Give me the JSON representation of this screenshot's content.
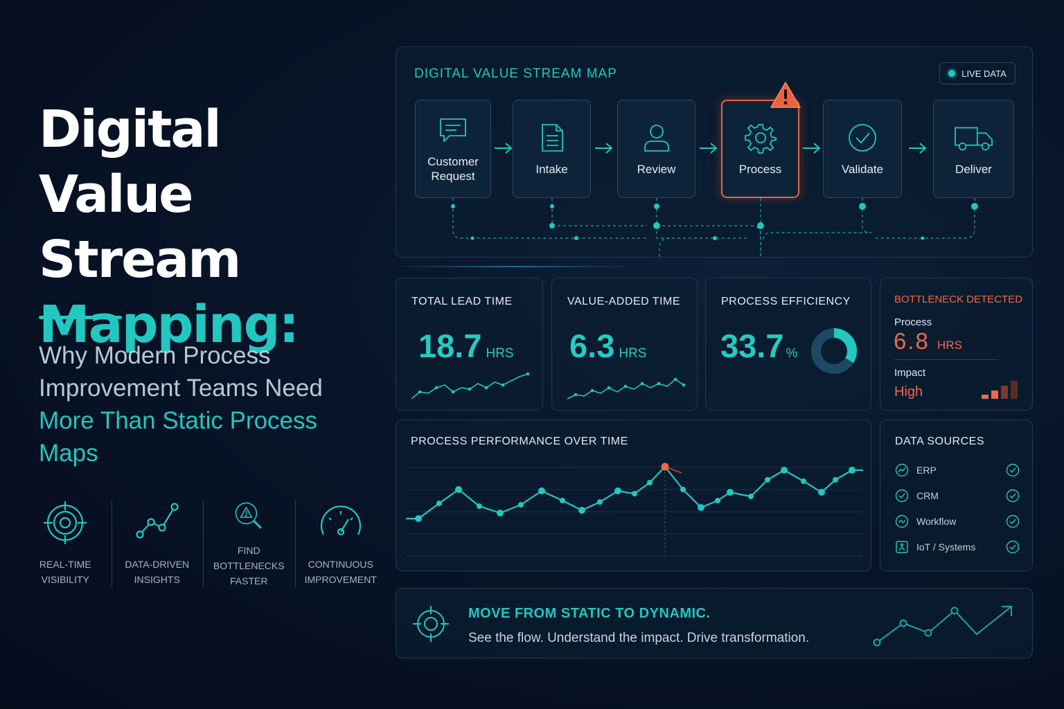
{
  "hero": {
    "title_line1": "Digital",
    "title_line2": "Value Stream",
    "title_line3": "Mapping:",
    "subtitle_part1": "Why Modern Process Improvement Teams Need ",
    "subtitle_part2": "More Than Static Process Maps"
  },
  "features": [
    {
      "icon": "target-icon",
      "label": "REAL-TIME\nVISIBILITY"
    },
    {
      "icon": "trend-line-icon",
      "label": "DATA-DRIVEN\nINSIGHTS"
    },
    {
      "icon": "magnifier-alert-icon",
      "label": "FIND BOTTLENECKS\nFASTER"
    },
    {
      "icon": "speedometer-icon",
      "label": "CONTINUOUS\nIMPROVEMENT"
    }
  ],
  "map": {
    "title": "DIGITAL VALUE STREAM MAP",
    "live_label": "LIVE DATA",
    "steps": [
      {
        "label": "Customer Request",
        "icon": "chat-icon"
      },
      {
        "label": "Intake",
        "icon": "document-icon"
      },
      {
        "label": "Review",
        "icon": "user-icon"
      },
      {
        "label": "Process",
        "icon": "gear-icon",
        "alert": true
      },
      {
        "label": "Validate",
        "icon": "check-circle-icon"
      },
      {
        "label": "Deliver",
        "icon": "truck-icon"
      }
    ]
  },
  "kpis": {
    "lead_time": {
      "title": "TOTAL LEAD TIME",
      "value": "18.7",
      "unit": "HRS"
    },
    "value_added": {
      "title": "VALUE-ADDED TIME",
      "value": "6.3",
      "unit": "HRS"
    },
    "efficiency": {
      "title": "PROCESS EFFICIENCY",
      "value": "33.7",
      "unit": "%",
      "percent": 33.7
    },
    "bottleneck": {
      "title": "BOTTLENECK DETECTED",
      "process_label": "Process",
      "process_value": "6.8",
      "process_unit": "HRS",
      "impact_label": "Impact",
      "impact_value": "High"
    }
  },
  "performance": {
    "title": "PROCESS PERFORMANCE OVER TIME"
  },
  "sources": {
    "title": "DATA SOURCES",
    "items": [
      {
        "label": "ERP",
        "icon": "erp-icon",
        "status": "connected"
      },
      {
        "label": "CRM",
        "icon": "crm-icon",
        "status": "connected"
      },
      {
        "label": "Workflow",
        "icon": "workflow-icon",
        "status": "connected"
      },
      {
        "label": "IoT / Systems",
        "icon": "iot-icon",
        "status": "connected"
      }
    ]
  },
  "cta": {
    "heading": "MOVE FROM STATIC TO DYNAMIC.",
    "text": "See the flow. Understand the impact. Drive transformation."
  },
  "colors": {
    "accent": "#22c7c0",
    "alert": "#ef6a45",
    "background": "#081428",
    "panel_border": "#1e3a55"
  }
}
